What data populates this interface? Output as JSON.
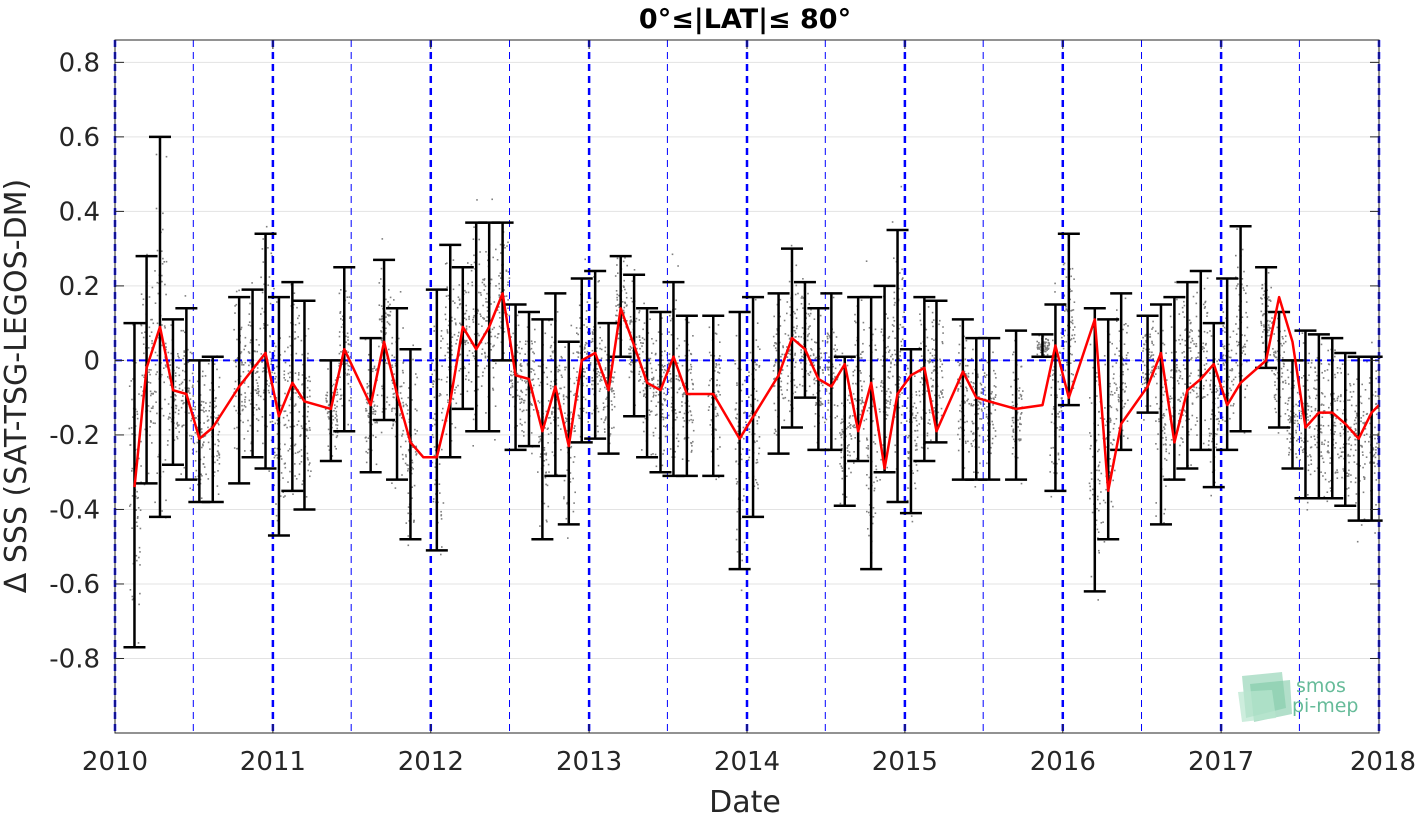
{
  "chart_data": {
    "type": "scatter",
    "title": "0°≤|LAT|≤ 80°",
    "xlabel": "Date",
    "ylabel": "Δ SSS (SAT-TSG-LEGOS-DM)",
    "xlim": [
      "2010-01-01",
      "2018-01-01"
    ],
    "ylim": [
      -1.0,
      0.86
    ],
    "xticks": [
      "2010",
      "2011",
      "2012",
      "2013",
      "2014",
      "2015",
      "2016",
      "2017",
      "2018"
    ],
    "yticks": [
      0.8,
      0.6,
      0.4,
      0.2,
      0,
      -0.2,
      -0.4,
      -0.6,
      -0.8
    ],
    "ytick_labels": [
      "0.8",
      "0.6",
      "0.4",
      "0.2",
      "0",
      "-0.2",
      "-0.4",
      "-0.6",
      "-0.8"
    ],
    "grid": true,
    "zero_line": 0,
    "colors": {
      "mean_line": "#ff0000",
      "error_bars": "#000000",
      "scatter": "#7f7f7f",
      "year_lines": "#0000ff",
      "zero_line": "#0000ff"
    },
    "series": [
      {
        "kind": "monthly-mean",
        "x": [
          "2010-02-15",
          "2010-03-15",
          "2010-04-15",
          "2010-05-15",
          "2010-06-15",
          "2010-07-15",
          "2010-08-15",
          "2010-10-15",
          "2010-12-15",
          "2011-01-15",
          "2011-02-15",
          "2011-03-15",
          "2011-05-15",
          "2011-06-15",
          "2011-08-15",
          "2011-09-15",
          "2011-10-15",
          "2011-11-15",
          "2011-12-15",
          "2012-01-15",
          "2012-02-15",
          "2012-03-15",
          "2012-04-15",
          "2012-05-15",
          "2012-06-15",
          "2012-07-15",
          "2012-08-15",
          "2012-09-15",
          "2012-10-15",
          "2012-11-15",
          "2012-12-15",
          "2013-01-15",
          "2013-02-15",
          "2013-03-15",
          "2013-04-15",
          "2013-05-15",
          "2013-06-15",
          "2013-07-15",
          "2013-08-15",
          "2013-10-15",
          "2013-12-15",
          "2014-03-15",
          "2014-04-15",
          "2014-05-15",
          "2014-06-15",
          "2014-07-15",
          "2014-08-15",
          "2014-09-15",
          "2014-10-15",
          "2014-11-15",
          "2014-12-15",
          "2015-01-15",
          "2015-02-15",
          "2015-03-15",
          "2015-05-15",
          "2015-06-15",
          "2015-07-15",
          "2015-09-15",
          "2015-11-15",
          "2015-12-15",
          "2016-01-15",
          "2016-03-15",
          "2016-04-15",
          "2016-05-15",
          "2016-07-15",
          "2016-08-15",
          "2016-09-15",
          "2016-10-15",
          "2016-11-15",
          "2016-12-15",
          "2017-01-15",
          "2017-02-15",
          "2017-04-15",
          "2017-05-15",
          "2017-06-15",
          "2017-07-15",
          "2017-08-15",
          "2017-09-15",
          "2017-10-15",
          "2017-11-15",
          "2017-12-15",
          "2018-01-01"
        ],
        "y": [
          -0.34,
          -0.02,
          0.09,
          -0.08,
          -0.09,
          -0.21,
          -0.18,
          -0.07,
          0.02,
          -0.15,
          -0.06,
          -0.11,
          -0.13,
          0.03,
          -0.12,
          0.05,
          -0.09,
          -0.22,
          -0.26,
          -0.26,
          -0.11,
          0.09,
          0.03,
          0.09,
          0.18,
          -0.04,
          -0.05,
          -0.19,
          -0.07,
          -0.23,
          0.0,
          0.02,
          -0.08,
          0.14,
          0.04,
          -0.06,
          -0.08,
          0.01,
          -0.09,
          -0.09,
          -0.21,
          -0.04,
          0.06,
          0.03,
          -0.05,
          -0.07,
          -0.01,
          -0.19,
          -0.06,
          -0.29,
          -0.09,
          -0.04,
          -0.02,
          -0.19,
          -0.03,
          -0.1,
          -0.11,
          -0.13,
          -0.12,
          0.04,
          -0.1,
          0.11,
          -0.35,
          -0.17,
          -0.07,
          0.02,
          -0.22,
          -0.08,
          -0.05,
          -0.01,
          -0.12,
          -0.06,
          0.0,
          0.17,
          0.05,
          -0.18,
          -0.14,
          -0.14,
          -0.17,
          -0.21,
          -0.14,
          -0.12
        ]
      },
      {
        "kind": "error-bars",
        "x": [
          "2010-02-15",
          "2010-03-15",
          "2010-04-15",
          "2010-05-15",
          "2010-06-15",
          "2010-07-15",
          "2010-08-15",
          "2010-10-15",
          "2010-11-15",
          "2010-12-15",
          "2011-01-15",
          "2011-02-15",
          "2011-03-15",
          "2011-05-15",
          "2011-06-15",
          "2011-08-15",
          "2011-09-15",
          "2011-10-15",
          "2011-11-15",
          "2012-01-15",
          "2012-02-15",
          "2012-03-15",
          "2012-04-15",
          "2012-05-15",
          "2012-06-15",
          "2012-07-15",
          "2012-08-15",
          "2012-09-15",
          "2012-10-15",
          "2012-11-15",
          "2012-12-15",
          "2013-01-15",
          "2013-02-15",
          "2013-03-15",
          "2013-04-15",
          "2013-05-15",
          "2013-06-15",
          "2013-07-15",
          "2013-08-15",
          "2013-10-15",
          "2013-12-15",
          "2014-01-15",
          "2014-03-15",
          "2014-04-15",
          "2014-05-15",
          "2014-06-15",
          "2014-07-15",
          "2014-08-15",
          "2014-09-15",
          "2014-10-15",
          "2014-11-15",
          "2014-12-15",
          "2015-01-15",
          "2015-02-15",
          "2015-03-15",
          "2015-05-15",
          "2015-06-15",
          "2015-07-15",
          "2015-09-15",
          "2015-11-15",
          "2015-12-15",
          "2016-01-15",
          "2016-03-15",
          "2016-04-15",
          "2016-05-15",
          "2016-07-15",
          "2016-08-15",
          "2016-09-15",
          "2016-10-15",
          "2016-11-15",
          "2016-12-15",
          "2017-01-15",
          "2017-02-15",
          "2017-04-15",
          "2017-05-15",
          "2017-06-15",
          "2017-07-15",
          "2017-08-15",
          "2017-09-15",
          "2017-10-15",
          "2017-11-15",
          "2017-12-15"
        ],
        "low": [
          -0.77,
          -0.33,
          -0.42,
          -0.28,
          -0.32,
          -0.38,
          -0.38,
          -0.33,
          -0.26,
          -0.29,
          -0.47,
          -0.35,
          -0.4,
          -0.27,
          -0.19,
          -0.3,
          -0.16,
          -0.32,
          -0.48,
          -0.51,
          -0.26,
          -0.13,
          -0.19,
          -0.19,
          0.0,
          -0.24,
          -0.23,
          -0.48,
          -0.31,
          -0.44,
          -0.22,
          -0.21,
          -0.25,
          0.01,
          -0.15,
          -0.26,
          -0.3,
          -0.31,
          -0.31,
          -0.31,
          -0.56,
          -0.42,
          -0.25,
          -0.18,
          -0.1,
          -0.24,
          -0.24,
          -0.39,
          -0.27,
          -0.56,
          -0.3,
          -0.38,
          -0.41,
          -0.27,
          -0.22,
          -0.32,
          -0.32,
          -0.32,
          -0.32,
          0.01,
          -0.35,
          -0.12,
          -0.62,
          -0.48,
          -0.24,
          -0.14,
          -0.44,
          -0.32,
          -0.29,
          -0.24,
          -0.34,
          -0.24,
          -0.19,
          -0.02,
          -0.18,
          -0.29,
          -0.37,
          -0.37,
          -0.37,
          -0.39,
          -0.43,
          -0.43
        ],
        "high": [
          0.1,
          0.28,
          0.6,
          0.11,
          0.14,
          0.0,
          0.01,
          0.17,
          0.19,
          0.34,
          0.17,
          0.21,
          0.16,
          0.0,
          0.25,
          0.06,
          0.27,
          0.14,
          0.03,
          0.19,
          0.31,
          0.25,
          0.37,
          0.37,
          0.37,
          0.15,
          0.13,
          0.11,
          0.18,
          0.05,
          0.22,
          0.24,
          0.1,
          0.28,
          0.23,
          0.14,
          0.13,
          0.21,
          0.12,
          0.12,
          0.13,
          0.17,
          0.18,
          0.3,
          0.21,
          0.14,
          0.18,
          0.01,
          0.17,
          0.17,
          0.2,
          0.35,
          0.03,
          0.17,
          0.16,
          0.11,
          0.06,
          0.06,
          0.08,
          0.07,
          0.15,
          0.34,
          0.14,
          0.11,
          0.18,
          0.12,
          0.15,
          0.17,
          0.21,
          0.24,
          0.1,
          0.22,
          0.36,
          0.25,
          0.13,
          0.0,
          0.08,
          0.07,
          0.06,
          0.02,
          0.01,
          0.01
        ]
      },
      {
        "kind": "individual-points",
        "note_color": "#7f7f7f"
      }
    ],
    "vertical_lines": {
      "year_bold": [
        "2010-01-01",
        "2011-01-01",
        "2012-01-01",
        "2013-01-01",
        "2014-01-01",
        "2015-01-01",
        "2016-01-01",
        "2017-01-01",
        "2018-01-01"
      ],
      "half_year_thin": [
        "2010-07-01",
        "2011-07-01",
        "2012-07-01",
        "2013-07-01",
        "2014-07-01",
        "2015-07-01",
        "2016-07-01",
        "2017-07-01"
      ]
    }
  },
  "logo": {
    "line1": "smos",
    "line2": "pi-mep",
    "color": "#66bb99"
  }
}
